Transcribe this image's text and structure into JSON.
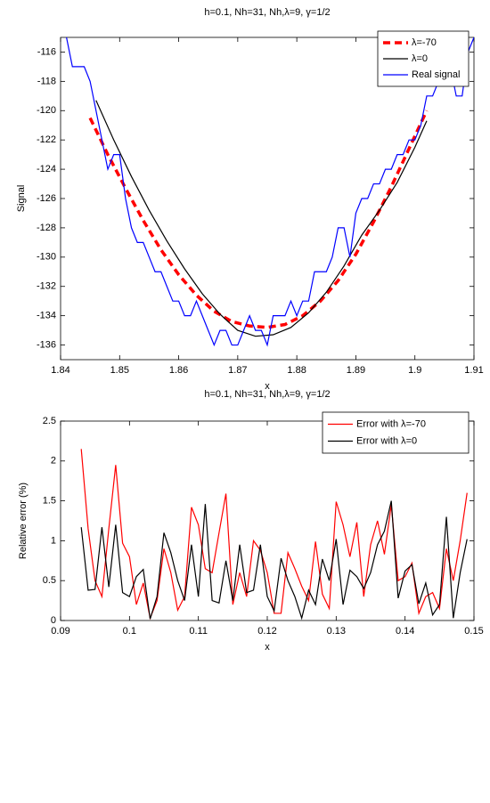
{
  "chart_data": [
    {
      "type": "line",
      "title": "h=0.1,  Nh=31,  Nh,λ=9,  γ=1/2",
      "xlabel": "x",
      "ylabel": "Signal",
      "xlim": [
        1.84,
        1.91
      ],
      "xticks": [
        1.84,
        1.85,
        1.86,
        1.87,
        1.88,
        1.89,
        1.9,
        1.91
      ],
      "ylim": [
        -137,
        -115
      ],
      "yticks": [
        -136,
        -134,
        -132,
        -130,
        -128,
        -126,
        -124,
        -122,
        -120,
        -118,
        -116
      ],
      "legend": "northeast",
      "series": [
        {
          "name": "λ=-70",
          "color": "#ff0000",
          "linestyle": "dashed",
          "x": [
            1.845,
            1.848,
            1.851,
            1.854,
            1.857,
            1.86,
            1.863,
            1.866,
            1.869,
            1.872,
            1.875,
            1.878,
            1.881,
            1.884,
            1.887,
            1.89,
            1.893,
            1.896,
            1.899,
            1.902
          ],
          "values": [
            -120.5,
            -123,
            -125.3,
            -127.5,
            -129.5,
            -131.2,
            -132.6,
            -133.7,
            -134.4,
            -134.7,
            -134.8,
            -134.6,
            -134,
            -133,
            -131.6,
            -129.8,
            -127.6,
            -125.2,
            -122.6,
            -120
          ]
        },
        {
          "name": "λ=0",
          "color": "#000000",
          "linestyle": "solid",
          "x": [
            1.846,
            1.849,
            1.852,
            1.855,
            1.858,
            1.861,
            1.864,
            1.867,
            1.87,
            1.873,
            1.876,
            1.879,
            1.882,
            1.885,
            1.888,
            1.891,
            1.894,
            1.897,
            1.9,
            1.902
          ],
          "values": [
            -119.3,
            -122,
            -124.5,
            -126.8,
            -128.9,
            -130.8,
            -132.5,
            -133.9,
            -135,
            -135.4,
            -135.3,
            -134.8,
            -133.8,
            -132.4,
            -130.6,
            -128.5,
            -126.8,
            -124.9,
            -122.5,
            -120.7
          ]
        },
        {
          "name": "Real signal",
          "color": "#0000ff",
          "linestyle": "solid",
          "x": [
            1.841,
            1.842,
            1.844,
            1.845,
            1.846,
            1.847,
            1.848,
            1.849,
            1.85,
            1.851,
            1.852,
            1.853,
            1.854,
            1.855,
            1.856,
            1.857,
            1.858,
            1.859,
            1.86,
            1.861,
            1.862,
            1.863,
            1.864,
            1.865,
            1.866,
            1.867,
            1.868,
            1.869,
            1.87,
            1.871,
            1.872,
            1.873,
            1.874,
            1.875,
            1.876,
            1.877,
            1.878,
            1.879,
            1.88,
            1.881,
            1.882,
            1.883,
            1.884,
            1.885,
            1.886,
            1.887,
            1.888,
            1.889,
            1.89,
            1.891,
            1.892,
            1.893,
            1.894,
            1.895,
            1.896,
            1.897,
            1.898,
            1.899,
            1.9,
            1.901,
            1.902,
            1.903,
            1.904,
            1.905,
            1.906,
            1.907,
            1.908,
            1.909,
            1.91
          ],
          "values": [
            -115,
            -117,
            -117,
            -118,
            -120,
            -122,
            -124,
            -123,
            -123,
            -126,
            -128,
            -129,
            -129,
            -130,
            -131,
            -131,
            -132,
            -133,
            -133,
            -134,
            -134,
            -133,
            -134,
            -135,
            -136,
            -135,
            -135,
            -136,
            -136,
            -135,
            -134,
            -135,
            -135,
            -136,
            -134,
            -134,
            -134,
            -133,
            -134,
            -133,
            -133,
            -131,
            -131,
            -131,
            -130,
            -128,
            -128,
            -130,
            -127,
            -126,
            -126,
            -125,
            -125,
            -124,
            -124,
            -123,
            -123,
            -122,
            -122,
            -121,
            -119,
            -119,
            -118,
            -118,
            -117,
            -119,
            -119,
            -116,
            -115
          ]
        }
      ]
    },
    {
      "type": "line",
      "title": "h=0.1,  Nh=31,  Nh,λ=9,  γ=1/2",
      "xlabel": "x",
      "ylabel": "Relative error (%)",
      "xlim": [
        0.09,
        0.15
      ],
      "xticks": [
        0.09,
        0.1,
        0.11,
        0.12,
        0.13,
        0.14,
        0.15
      ],
      "ylim": [
        0,
        2.5
      ],
      "yticks": [
        0,
        0.5,
        1,
        1.5,
        2,
        2.5
      ],
      "legend": "northeast",
      "series": [
        {
          "name": "Error with λ=-70",
          "color": "#ff0000",
          "linestyle": "solid",
          "x": [
            0.093,
            0.094,
            0.095,
            0.096,
            0.097,
            0.098,
            0.099,
            0.1,
            0.101,
            0.102,
            0.103,
            0.104,
            0.105,
            0.106,
            0.107,
            0.108,
            0.109,
            0.11,
            0.111,
            0.112,
            0.113,
            0.114,
            0.115,
            0.116,
            0.117,
            0.118,
            0.119,
            0.12,
            0.121,
            0.122,
            0.123,
            0.124,
            0.125,
            0.126,
            0.127,
            0.128,
            0.129,
            0.13,
            0.131,
            0.132,
            0.133,
            0.134,
            0.135,
            0.136,
            0.137,
            0.138,
            0.139,
            0.14,
            0.141,
            0.142,
            0.143,
            0.144,
            0.145,
            0.146,
            0.147,
            0.148,
            0.149
          ],
          "values": [
            2.15,
            1.15,
            0.5,
            0.3,
            1.15,
            1.95,
            0.97,
            0.8,
            0.2,
            0.47,
            0.03,
            0.25,
            0.9,
            0.6,
            0.13,
            0.3,
            1.42,
            1.2,
            0.65,
            0.6,
            1.1,
            1.59,
            0.2,
            0.6,
            0.3,
            1.0,
            0.88,
            0.6,
            0.09,
            0.09,
            0.85,
            0.65,
            0.43,
            0.25,
            0.99,
            0.33,
            0.15,
            1.49,
            1.2,
            0.8,
            1.23,
            0.3,
            0.95,
            1.25,
            0.83,
            1.45,
            0.5,
            0.55,
            0.72,
            0.09,
            0.3,
            0.35,
            0.15,
            0.9,
            0.5,
            1.0,
            1.6
          ]
        },
        {
          "name": "Error with λ=0",
          "color": "#000000",
          "linestyle": "solid",
          "x": [
            0.093,
            0.094,
            0.095,
            0.096,
            0.097,
            0.098,
            0.099,
            0.1,
            0.101,
            0.102,
            0.103,
            0.104,
            0.105,
            0.106,
            0.107,
            0.108,
            0.109,
            0.11,
            0.111,
            0.112,
            0.113,
            0.114,
            0.115,
            0.116,
            0.117,
            0.118,
            0.119,
            0.12,
            0.121,
            0.122,
            0.123,
            0.124,
            0.125,
            0.126,
            0.127,
            0.128,
            0.129,
            0.13,
            0.131,
            0.132,
            0.133,
            0.134,
            0.135,
            0.136,
            0.137,
            0.138,
            0.139,
            0.14,
            0.141,
            0.142,
            0.143,
            0.144,
            0.145,
            0.146,
            0.147,
            0.148,
            0.149
          ],
          "values": [
            1.17,
            0.38,
            0.39,
            1.17,
            0.42,
            1.2,
            0.35,
            0.3,
            0.55,
            0.64,
            0.02,
            0.3,
            1.1,
            0.85,
            0.5,
            0.25,
            0.95,
            0.3,
            1.46,
            0.25,
            0.22,
            0.75,
            0.25,
            0.95,
            0.35,
            0.38,
            0.95,
            0.3,
            0.12,
            0.78,
            0.5,
            0.3,
            0.03,
            0.38,
            0.2,
            0.77,
            0.5,
            1.02,
            0.2,
            0.63,
            0.55,
            0.4,
            0.6,
            0.95,
            1.12,
            1.5,
            0.28,
            0.62,
            0.7,
            0.21,
            0.47,
            0.07,
            0.2,
            1.3,
            0.03,
            0.6,
            1.02
          ]
        }
      ]
    }
  ]
}
